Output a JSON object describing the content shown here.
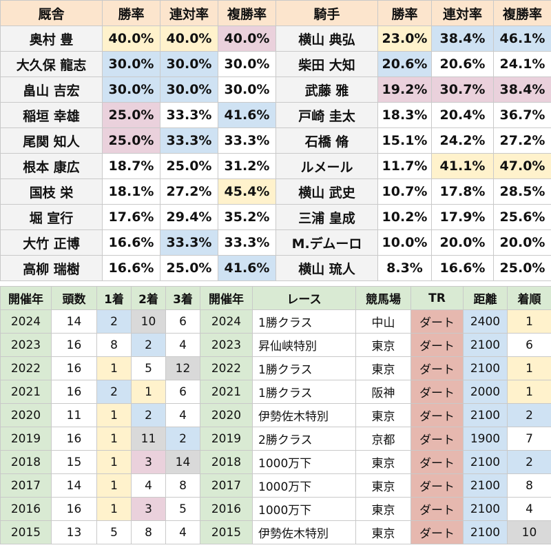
{
  "trainer_table": {
    "headers": [
      "厩舎",
      "勝率",
      "連対率",
      "複勝率"
    ],
    "rows": [
      {
        "name": "奥村 豊",
        "win": "40.0%",
        "place2": "40.0%",
        "place3": "40.0%",
        "c1": "yellow",
        "c2": "yellow",
        "c3": "pink"
      },
      {
        "name": "大久保 龍志",
        "win": "30.0%",
        "place2": "30.0%",
        "place3": "30.0%",
        "c1": "blue",
        "c2": "blue",
        "c3": ""
      },
      {
        "name": "畠山 吉宏",
        "win": "30.0%",
        "place2": "30.0%",
        "place3": "30.0%",
        "c1": "blue",
        "c2": "blue",
        "c3": ""
      },
      {
        "name": "稲垣 幸雄",
        "win": "25.0%",
        "place2": "33.3%",
        "place3": "41.6%",
        "c1": "pink",
        "c2": "",
        "c3": "blue"
      },
      {
        "name": "尾関 知人",
        "win": "25.0%",
        "place2": "33.3%",
        "place3": "33.3%",
        "c1": "pink",
        "c2": "blue",
        "c3": ""
      },
      {
        "name": "根本 康広",
        "win": "18.7%",
        "place2": "25.0%",
        "place3": "31.2%",
        "c1": "",
        "c2": "",
        "c3": ""
      },
      {
        "name": "国枝 栄",
        "win": "18.1%",
        "place2": "27.2%",
        "place3": "45.4%",
        "c1": "",
        "c2": "",
        "c3": "yellow"
      },
      {
        "name": "堀 宣行",
        "win": "17.6%",
        "place2": "29.4%",
        "place3": "35.2%",
        "c1": "",
        "c2": "",
        "c3": ""
      },
      {
        "name": "大竹 正博",
        "win": "16.6%",
        "place2": "33.3%",
        "place3": "33.3%",
        "c1": "",
        "c2": "blue",
        "c3": ""
      },
      {
        "name": "高柳 瑞樹",
        "win": "16.6%",
        "place2": "25.0%",
        "place3": "41.6%",
        "c1": "",
        "c2": "",
        "c3": "blue"
      }
    ]
  },
  "jockey_table": {
    "headers": [
      "騎手",
      "勝率",
      "連対率",
      "複勝率"
    ],
    "rows": [
      {
        "name": "横山 典弘",
        "win": "23.0%",
        "place2": "38.4%",
        "place3": "46.1%",
        "c1": "yellow",
        "c2": "blue",
        "c3": "blue"
      },
      {
        "name": "柴田 大知",
        "win": "20.6%",
        "place2": "20.6%",
        "place3": "24.1%",
        "c1": "blue",
        "c2": "",
        "c3": ""
      },
      {
        "name": "武藤 雅",
        "win": "19.2%",
        "place2": "30.7%",
        "place3": "38.4%",
        "c1": "pink",
        "c2": "pink",
        "c3": "pink"
      },
      {
        "name": "戸崎 圭太",
        "win": "18.3%",
        "place2": "20.4%",
        "place3": "36.7%",
        "c1": "",
        "c2": "",
        "c3": ""
      },
      {
        "name": "石橋 脩",
        "win": "15.1%",
        "place2": "24.2%",
        "place3": "27.2%",
        "c1": "",
        "c2": "",
        "c3": ""
      },
      {
        "name": "ルメール",
        "win": "11.7%",
        "place2": "41.1%",
        "place3": "47.0%",
        "c1": "",
        "c2": "yellow",
        "c3": "yellow"
      },
      {
        "name": "横山 武史",
        "win": "10.7%",
        "place2": "17.8%",
        "place3": "28.5%",
        "c1": "",
        "c2": "",
        "c3": ""
      },
      {
        "name": "三浦 皇成",
        "win": "10.2%",
        "place2": "17.9%",
        "place3": "25.6%",
        "c1": "",
        "c2": "",
        "c3": ""
      },
      {
        "name": "M.デムーロ",
        "win": "10.0%",
        "place2": "20.0%",
        "place3": "20.0%",
        "c1": "",
        "c2": "",
        "c3": ""
      },
      {
        "name": "横山 琉人",
        "win": "8.3%",
        "place2": "16.6%",
        "place3": "25.0%",
        "c1": "",
        "c2": "",
        "c3": ""
      }
    ]
  },
  "popularity_table": {
    "headers": [
      "開催年",
      "頭数",
      "1着",
      "2着",
      "3着"
    ],
    "rows": [
      {
        "year": "2024",
        "heads": "14",
        "p1": "2",
        "p2": "10",
        "p3": "6",
        "c1": "blue",
        "c2": "gray",
        "c3": ""
      },
      {
        "year": "2023",
        "heads": "16",
        "p1": "8",
        "p2": "2",
        "p3": "4",
        "c1": "",
        "c2": "blue",
        "c3": ""
      },
      {
        "year": "2022",
        "heads": "16",
        "p1": "1",
        "p2": "5",
        "p3": "12",
        "c1": "yellow",
        "c2": "",
        "c3": "gray"
      },
      {
        "year": "2021",
        "heads": "16",
        "p1": "2",
        "p2": "1",
        "p3": "6",
        "c1": "blue",
        "c2": "yellow",
        "c3": ""
      },
      {
        "year": "2020",
        "heads": "11",
        "p1": "1",
        "p2": "2",
        "p3": "4",
        "c1": "yellow",
        "c2": "blue",
        "c3": ""
      },
      {
        "year": "2019",
        "heads": "16",
        "p1": "1",
        "p2": "11",
        "p3": "2",
        "c1": "yellow",
        "c2": "gray",
        "c3": "blue"
      },
      {
        "year": "2018",
        "heads": "15",
        "p1": "1",
        "p2": "3",
        "p3": "14",
        "c1": "yellow",
        "c2": "pink",
        "c3": "gray"
      },
      {
        "year": "2017",
        "heads": "14",
        "p1": "1",
        "p2": "4",
        "p3": "8",
        "c1": "yellow",
        "c2": "",
        "c3": ""
      },
      {
        "year": "2016",
        "heads": "16",
        "p1": "1",
        "p2": "3",
        "p3": "5",
        "c1": "yellow",
        "c2": "pink",
        "c3": ""
      },
      {
        "year": "2015",
        "heads": "13",
        "p1": "5",
        "p2": "8",
        "p3": "4",
        "c1": "",
        "c2": "",
        "c3": ""
      }
    ]
  },
  "race_table": {
    "headers": [
      "開催年",
      "レース",
      "競馬場",
      "TR",
      "距離",
      "着順"
    ],
    "rows": [
      {
        "year": "2024",
        "race": "1勝クラス",
        "course": "中山",
        "tr": "ダート",
        "dist": "2400",
        "finish": "1",
        "cd": "blue",
        "cf": "yellow"
      },
      {
        "year": "2023",
        "race": "昇仙峡特別",
        "course": "東京",
        "tr": "ダート",
        "dist": "2100",
        "finish": "6",
        "cd": "blue",
        "cf": ""
      },
      {
        "year": "2022",
        "race": "1勝クラス",
        "course": "東京",
        "tr": "ダート",
        "dist": "2100",
        "finish": "1",
        "cd": "blue",
        "cf": "yellow"
      },
      {
        "year": "2021",
        "race": "1勝クラス",
        "course": "阪神",
        "tr": "ダート",
        "dist": "2000",
        "finish": "1",
        "cd": "blue",
        "cf": "yellow"
      },
      {
        "year": "2020",
        "race": "伊勢佐木特別",
        "course": "東京",
        "tr": "ダート",
        "dist": "2100",
        "finish": "2",
        "cd": "blue",
        "cf": "blue"
      },
      {
        "year": "2019",
        "race": "2勝クラス",
        "course": "京都",
        "tr": "ダート",
        "dist": "1900",
        "finish": "7",
        "cd": "blue",
        "cf": ""
      },
      {
        "year": "2018",
        "race": "1000万下",
        "course": "東京",
        "tr": "ダート",
        "dist": "2100",
        "finish": "2",
        "cd": "blue",
        "cf": "blue"
      },
      {
        "year": "2017",
        "race": "1000万下",
        "course": "東京",
        "tr": "ダート",
        "dist": "2100",
        "finish": "8",
        "cd": "blue",
        "cf": ""
      },
      {
        "year": "2016",
        "race": "1000万下",
        "course": "東京",
        "tr": "ダート",
        "dist": "2100",
        "finish": "4",
        "cd": "blue",
        "cf": ""
      },
      {
        "year": "2015",
        "race": "伊勢佐木特別",
        "course": "東京",
        "tr": "ダート",
        "dist": "2100",
        "finish": "10",
        "cd": "blue",
        "cf": "gray"
      }
    ]
  }
}
